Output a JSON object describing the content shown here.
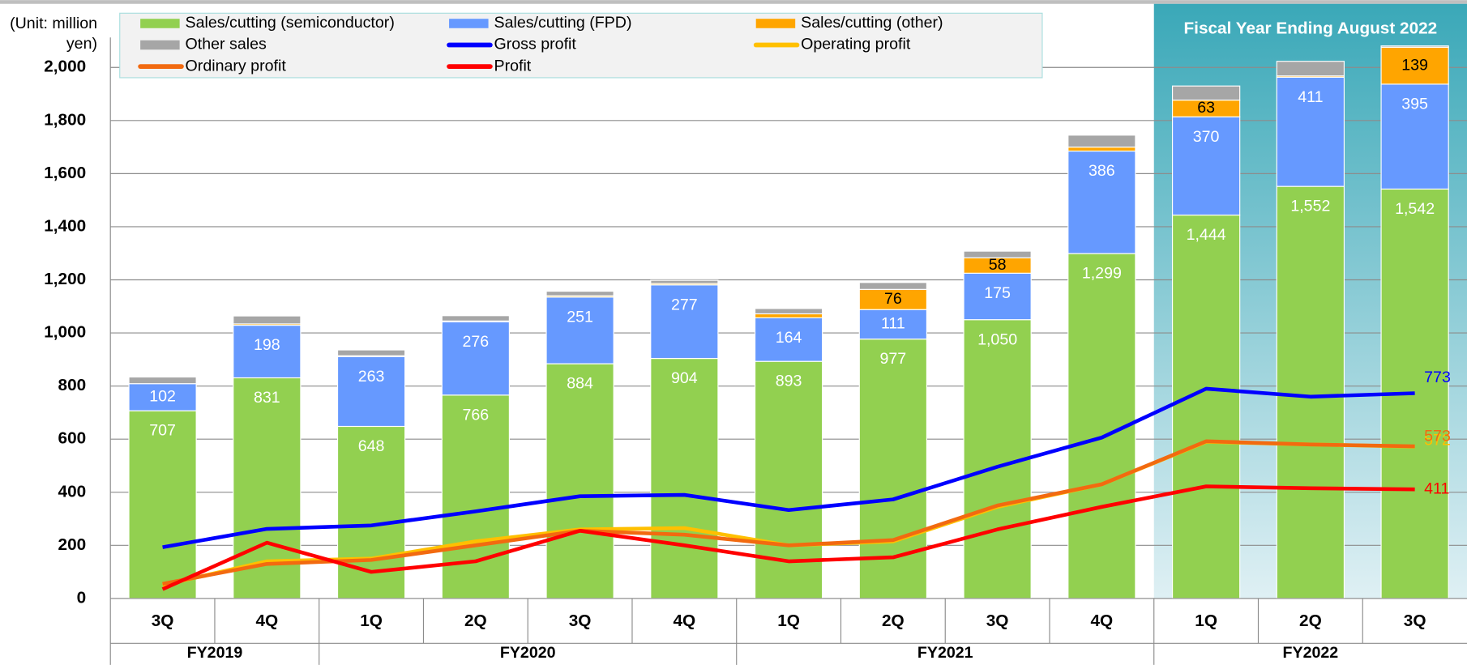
{
  "chart_data": {
    "type": "stacked-bar-line",
    "ylabel": "(Unit: million yen)",
    "highlight": {
      "label": "Fiscal Year Ending August 2022",
      "group": "FY2022"
    },
    "categories": [
      "3Q",
      "4Q",
      "1Q",
      "2Q",
      "3Q",
      "4Q",
      "1Q",
      "2Q",
      "3Q",
      "4Q",
      "1Q",
      "2Q",
      "3Q"
    ],
    "groups": [
      "FY2019",
      "FY2019",
      "FY2020",
      "FY2020",
      "FY2020",
      "FY2020",
      "FY2021",
      "FY2021",
      "FY2021",
      "FY2021",
      "FY2022",
      "FY2022",
      "FY2022"
    ],
    "ylim": [
      0,
      2000
    ],
    "yticks": [
      0,
      200,
      400,
      600,
      800,
      {
        "value": 1000,
        "label": "1,000"
      },
      {
        "value": 1200,
        "label": "1,200"
      },
      {
        "value": 1400,
        "label": "1,400"
      },
      {
        "value": 1600,
        "label": "1,600"
      },
      {
        "value": 1800,
        "label": "1,800"
      },
      {
        "value": 2000,
        "label": "2,000"
      }
    ],
    "grid": true,
    "series": [
      {
        "name": "Sales/cutting (semiconductor)",
        "kind": "bar",
        "color": "#92d050",
        "label_color": "#ffffff",
        "values": [
          707,
          831,
          648,
          766,
          884,
          904,
          893,
          977,
          1050,
          1299,
          1444,
          1552,
          1542
        ],
        "value_labels": [
          "707",
          "831",
          "648",
          "766",
          "884",
          "904",
          "893",
          "977",
          "1,050",
          "1,299",
          "1,444",
          "1,552",
          "1,542"
        ]
      },
      {
        "name": "Sales/cutting (FPD)",
        "kind": "bar",
        "color": "#6699ff",
        "label_color": "#ffffff",
        "values": [
          102,
          198,
          263,
          276,
          251,
          277,
          164,
          111,
          175,
          386,
          370,
          411,
          395
        ]
      },
      {
        "name": "Sales/cutting (other)",
        "kind": "bar",
        "color": "#ffa500",
        "label_color": "#000000",
        "values": [
          0,
          5,
          3,
          3,
          5,
          5,
          15,
          76,
          58,
          15,
          63,
          5,
          139
        ]
      },
      {
        "name": "Other sales",
        "kind": "bar",
        "color": "#a6a6a6",
        "values": [
          25,
          30,
          22,
          20,
          17,
          12,
          20,
          26,
          25,
          45,
          53,
          55,
          5
        ]
      },
      {
        "name": "Gross profit",
        "kind": "line",
        "color": "#0000ff",
        "values": [
          193,
          262,
          275,
          328,
          385,
          390,
          333,
          373,
          496,
          606,
          790,
          760,
          773
        ]
      },
      {
        "name": "Operating profit",
        "kind": "line",
        "color": "#ffc000",
        "values": [
          50,
          140,
          150,
          215,
          260,
          265,
          200,
          215,
          345,
          430,
          590,
          580,
          572
        ]
      },
      {
        "name": "Ordinary profit",
        "kind": "line",
        "color": "#f26a10",
        "values": [
          55,
          130,
          145,
          200,
          255,
          240,
          200,
          220,
          350,
          430,
          592,
          580,
          573
        ]
      },
      {
        "name": "Profit",
        "kind": "line",
        "color": "#ff0000",
        "values": [
          35,
          210,
          100,
          140,
          255,
          200,
          140,
          155,
          260,
          345,
          422,
          415,
          411
        ]
      }
    ]
  }
}
